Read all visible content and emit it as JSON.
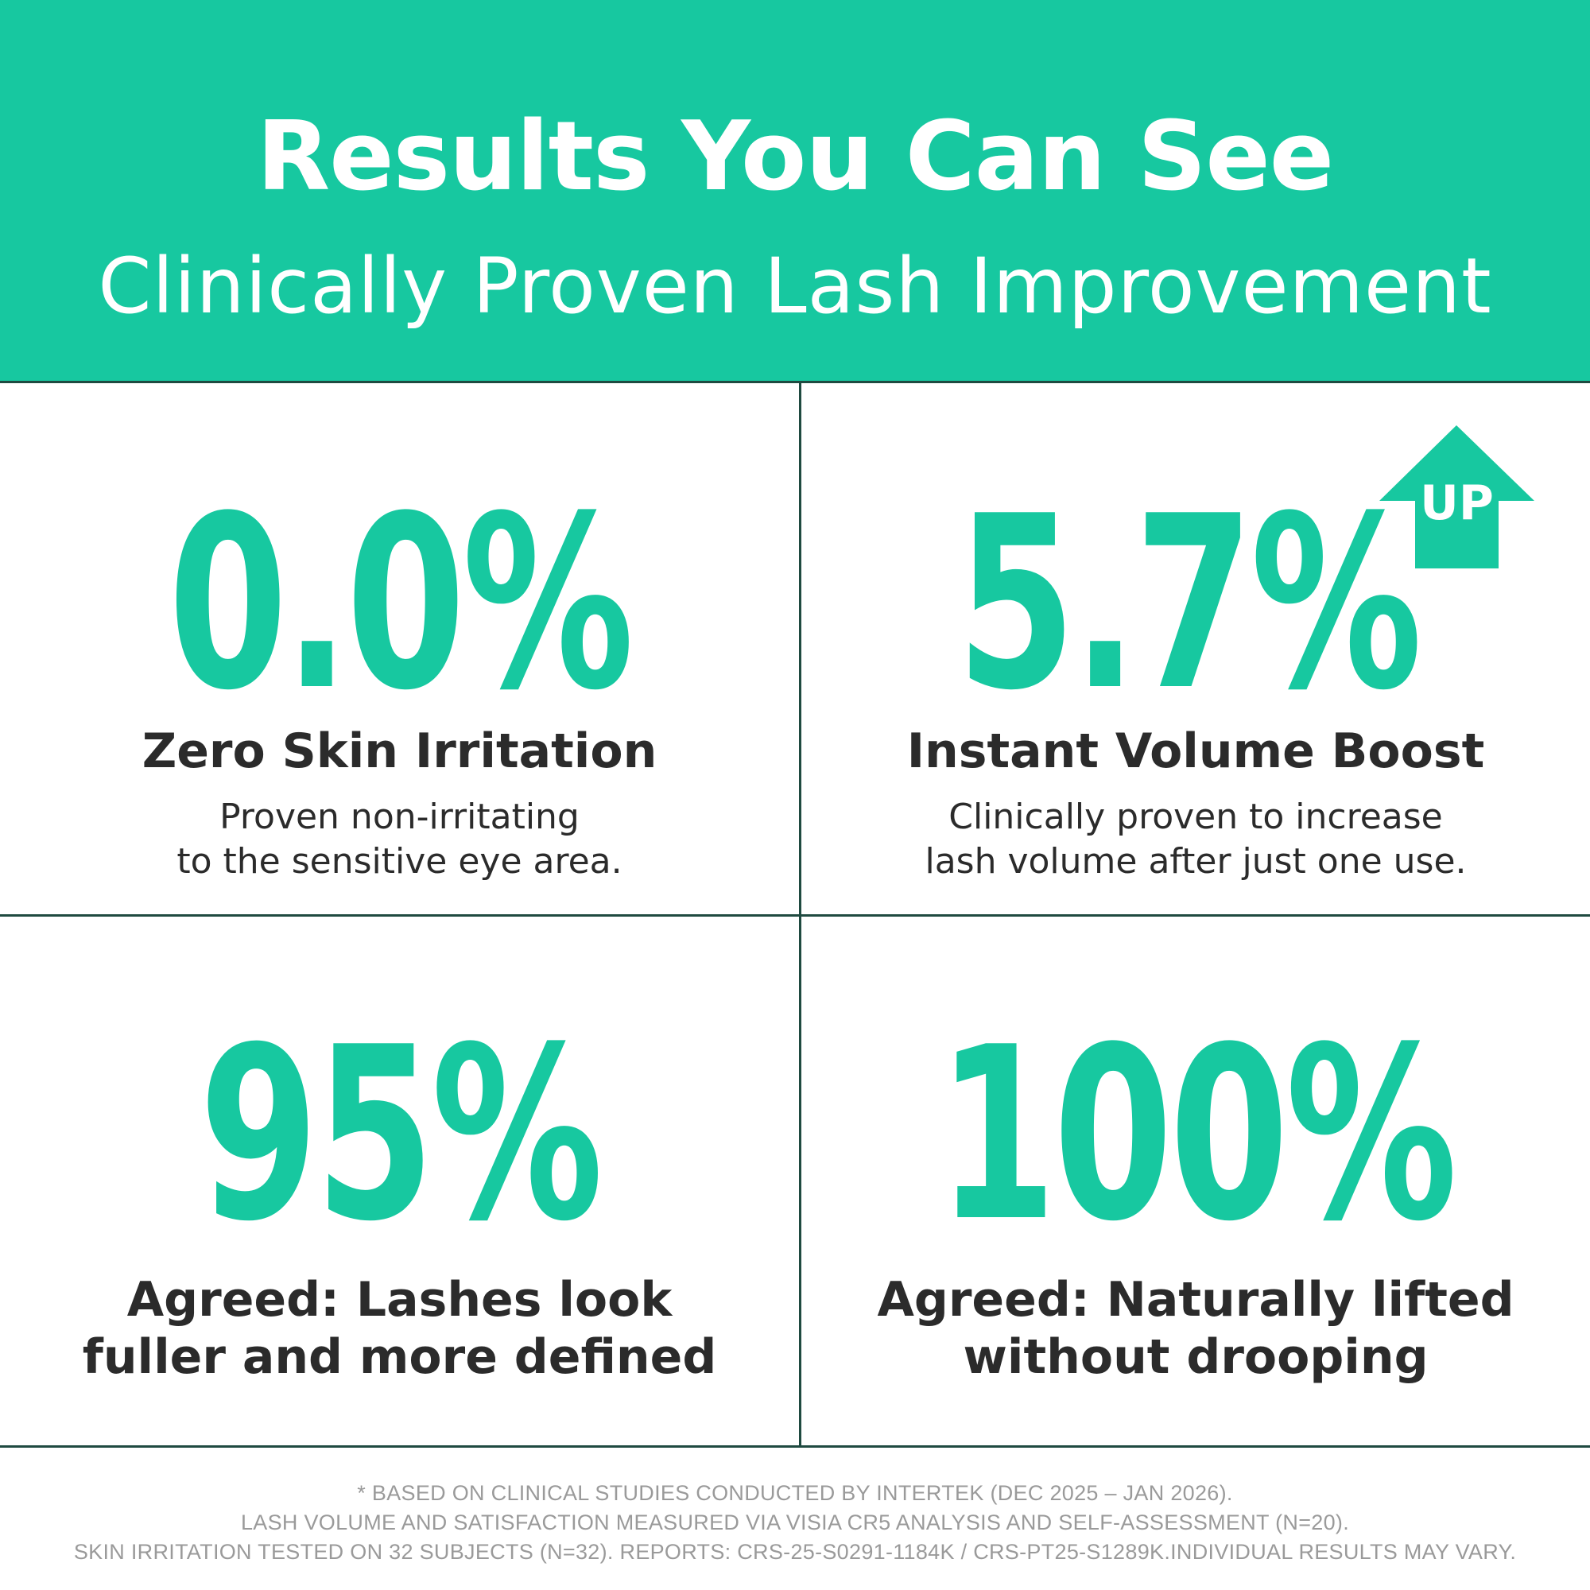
{
  "header": {
    "title": "Results You Can See",
    "subtitle": "Clinically Proven Lash Improvement"
  },
  "colors": {
    "accent": "#17c8a0",
    "divider": "#1f4a40",
    "text": "#2b2b2b",
    "footer_text": "#9a9a9a"
  },
  "stats": [
    {
      "value": "0.0%",
      "label": "Zero Skin Irritation",
      "description_line1": "Proven non-irritating",
      "description_line2": "to the sensitive eye area."
    },
    {
      "value": "5.7%",
      "badge": "UP",
      "badge_icon": "up-arrow-icon",
      "label": "Instant Volume Boost",
      "description_line1": "Clinically proven to increase",
      "description_line2": "lash volume after just one use."
    },
    {
      "value": "95%",
      "label_line1": "Agreed: Lashes look",
      "label_line2": "fuller and more defined"
    },
    {
      "value": "100%",
      "label_line1": "Agreed: Naturally lifted",
      "label_line2": "without drooping"
    }
  ],
  "footer": {
    "line1": "* BASED ON CLINICAL STUDIES CONDUCTED BY INTERTEK (DEC 2025 – JAN 2026).",
    "line2": "LASH VOLUME AND SATISFACTION MEASURED VIA VISIA CR5 ANALYSIS AND SELF-ASSESSMENT (N=20).",
    "line3": "SKIN IRRITATION TESTED ON 32 SUBJECTS (N=32). REPORTS: CRS-25-S0291-1184K / CRS-PT25-S1289K.INDIVIDUAL RESULTS MAY VARY."
  }
}
